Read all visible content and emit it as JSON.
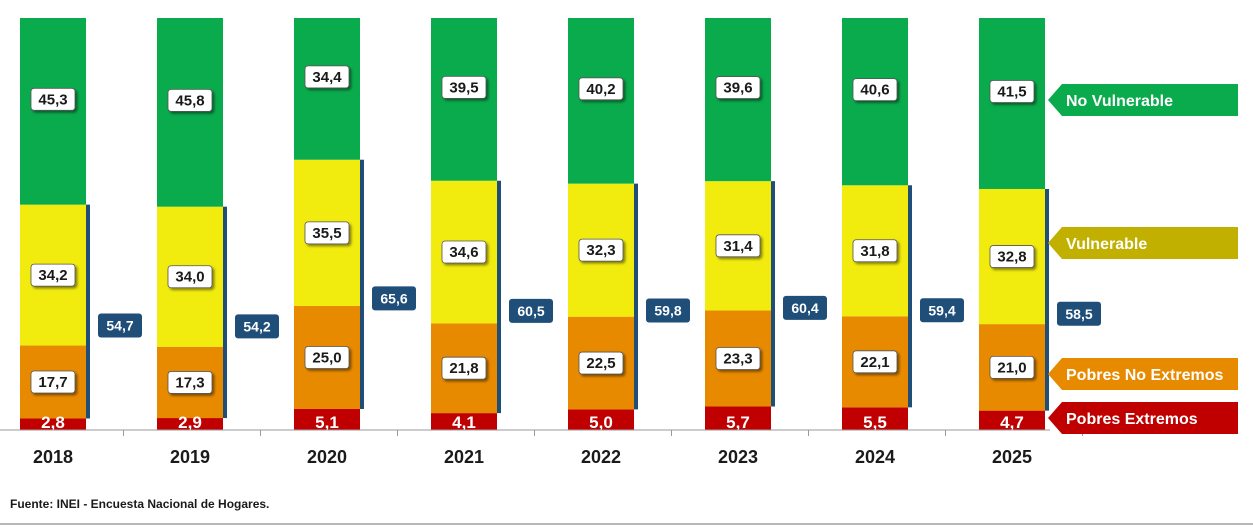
{
  "chart_data": {
    "type": "bar",
    "stacked": true,
    "categories": [
      "2018",
      "2019",
      "2020",
      "2021",
      "2022",
      "2023",
      "2024",
      "2025"
    ],
    "series": [
      {
        "name": "Pobres Extremos",
        "color": "#c00000",
        "values": [
          2.8,
          2.9,
          5.1,
          4.1,
          5.0,
          5.7,
          5.5,
          4.7
        ],
        "labels": [
          "2,8",
          "2,9",
          "5,1",
          "4,1",
          "5,0",
          "5,7",
          "5,5",
          "4,7"
        ]
      },
      {
        "name": "Pobres No Extremos",
        "color": "#e88a00",
        "values": [
          17.7,
          17.3,
          25.0,
          21.8,
          22.5,
          23.3,
          22.1,
          21.0
        ],
        "labels": [
          "17,7",
          "17,3",
          "25,0",
          "21,8",
          "22,5",
          "23,3",
          "22,1",
          "21,0"
        ]
      },
      {
        "name": "Vulnerable",
        "color": "#f2eb0e",
        "values": [
          34.2,
          34.0,
          35.5,
          34.6,
          32.3,
          31.4,
          31.8,
          32.8
        ],
        "labels": [
          "34,2",
          "34,0",
          "35,5",
          "34,6",
          "32,3",
          "31,4",
          "31,8",
          "32,8"
        ]
      },
      {
        "name": "No Vulnerable",
        "color": "#0aab4c",
        "values": [
          45.3,
          45.8,
          34.4,
          39.5,
          40.2,
          39.6,
          40.6,
          41.5
        ],
        "labels": [
          "45,3",
          "45,8",
          "34,4",
          "39,5",
          "40,2",
          "39,6",
          "40,6",
          "41,5"
        ]
      }
    ],
    "bracket": {
      "values": [
        54.7,
        54.2,
        65.6,
        60.5,
        59.8,
        60.4,
        59.4,
        58.5
      ],
      "labels": [
        "54,7",
        "54,2",
        "65,6",
        "60,5",
        "59,8",
        "60,4",
        "59,4",
        "58,5"
      ],
      "color": "#1f4e79"
    },
    "legend_colors": {
      "No Vulnerable": "#0aab4c",
      "Vulnerable": "#c1b000",
      "Pobres No Extremos": "#e88a00",
      "Pobres Extremos": "#c00000"
    },
    "legend_placement": "right",
    "ylim": [
      0,
      100
    ],
    "grid": false
  },
  "source": "Fuente: INEI - Encuesta Nacional de Hogares."
}
